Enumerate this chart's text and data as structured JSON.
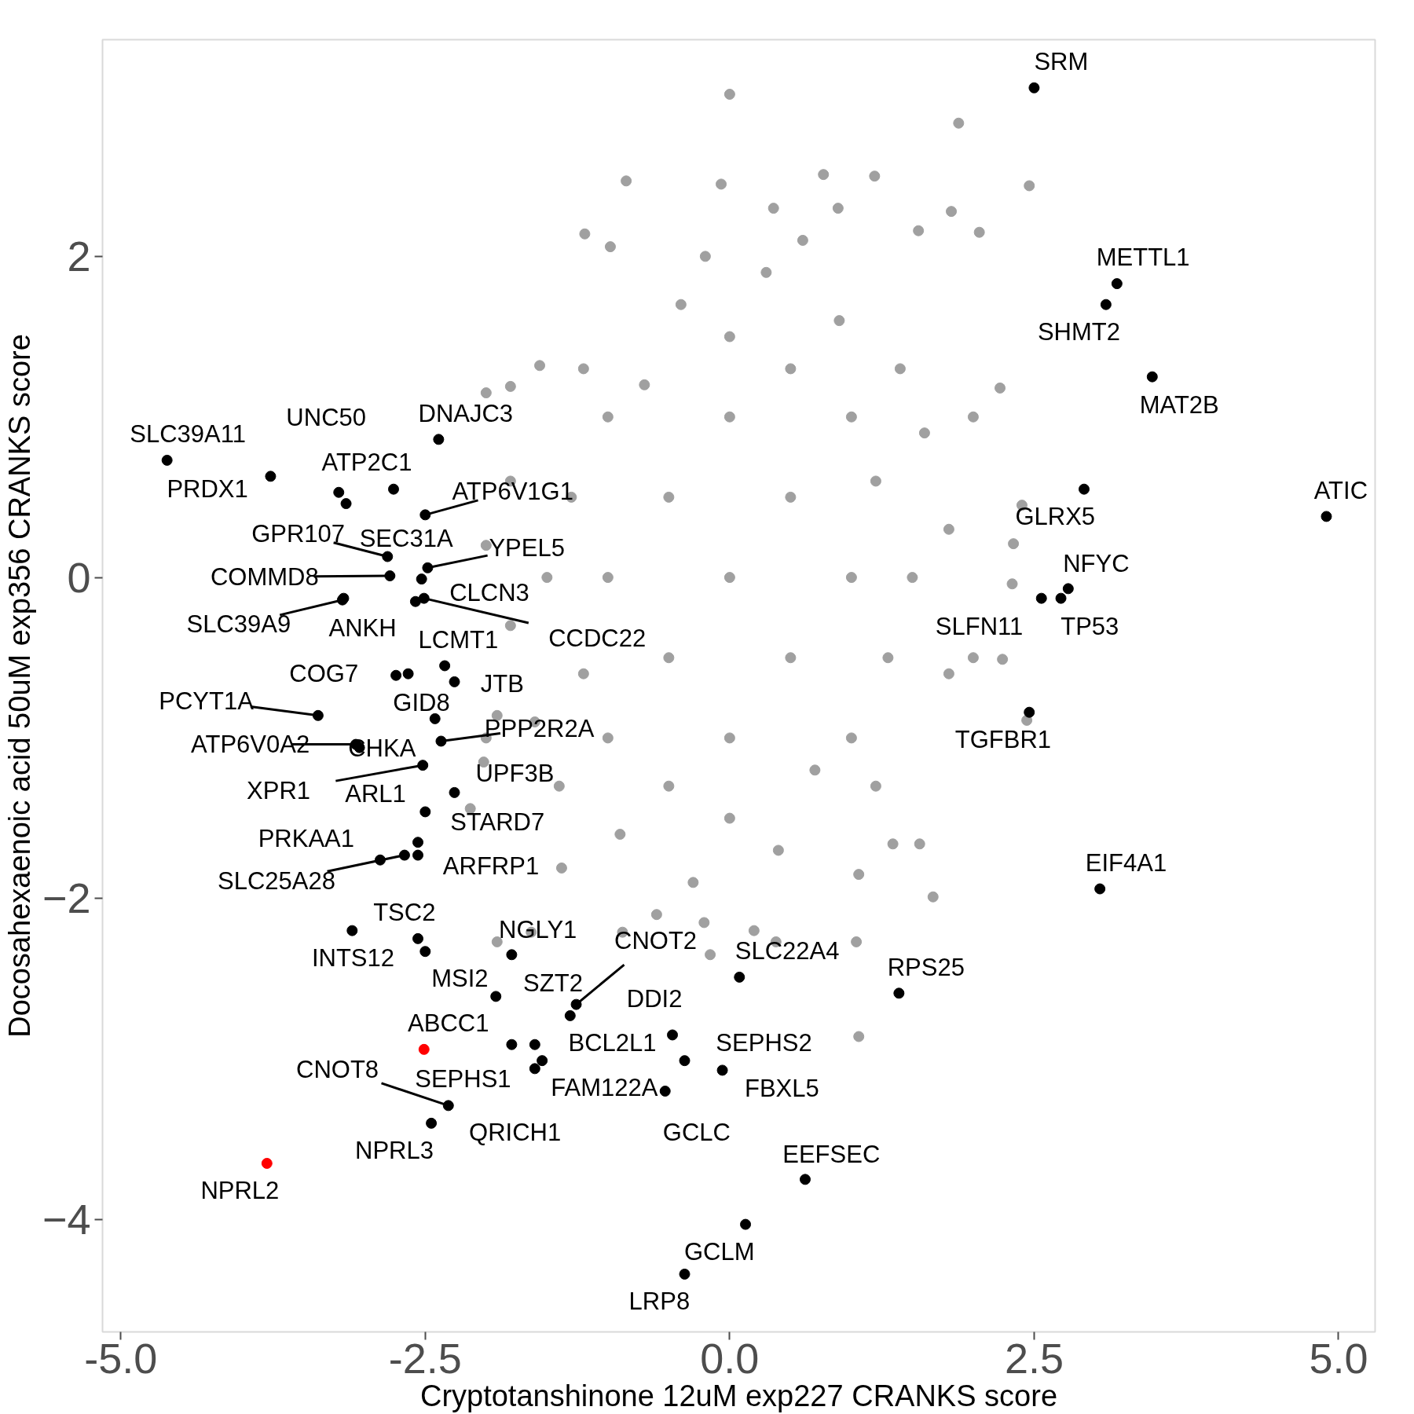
{
  "chart_data": {
    "type": "scatter",
    "xlabel": "Cryptotanshinone 12uM exp227 CRANKS score",
    "ylabel": "Docosahexaenoic acid 50uM exp356 CRANKS score",
    "xlim": [
      -5.15,
      5.3
    ],
    "ylim": [
      -4.7,
      3.35
    ],
    "xticks": [
      {
        "value": -5,
        "label": "-5.0"
      },
      {
        "value": -2.5,
        "label": "-2.5"
      },
      {
        "value": 0,
        "label": "0.0"
      },
      {
        "value": 2.5,
        "label": "2.5"
      },
      {
        "value": 5,
        "label": "5.0"
      }
    ],
    "yticks": [
      -4,
      -2,
      0,
      2
    ],
    "grid": false,
    "marker": "circle",
    "series": [
      {
        "color": "#a0a0a0",
        "x": [
          0,
          0.5,
          -0.5,
          0.5,
          -0.5,
          1,
          -1,
          0,
          0,
          1,
          -1,
          1,
          -1,
          0,
          0,
          1.5,
          -1.5,
          0.5,
          -0.5,
          0.7,
          -0.7,
          1.2,
          -1.2,
          1.3,
          -1.3,
          0.3,
          -0.3,
          0.9,
          -0.9,
          1.6,
          -1.6,
          1.8,
          -1.8,
          1.8,
          -1.8,
          0.4,
          -0.4,
          1.4,
          -1.4,
          1.2,
          -1.2,
          2,
          -2,
          2,
          -2,
          0.6,
          -0.2,
          0.2,
          -0.6,
          0.0,
          1.88,
          2.46,
          -0.85,
          -0.07,
          0.77,
          1.19,
          2.05,
          -1.19,
          -0.98,
          0.36,
          0.89,
          1.82,
          1.55,
          2.22,
          2.4,
          2.33,
          2.32,
          2.24,
          2.44,
          1.67,
          1.06,
          1.34,
          1.06,
          1.56,
          -1.91,
          -2.13,
          -2.02,
          -1.91,
          -2.0,
          -1.8,
          -1.56,
          -1.63,
          -1.38,
          -0.88,
          -0.16,
          0.38,
          -0.21,
          1.04
        ],
        "values": [
          0,
          0.5,
          -0.5,
          -0.5,
          0.5,
          0,
          0,
          1,
          -1,
          1,
          -1,
          -1,
          1,
          1.5,
          -1.5,
          0,
          0,
          1.3,
          -1.3,
          -1.2,
          1.2,
          0.6,
          -0.6,
          -0.5,
          0.5,
          1.9,
          -1.9,
          1.6,
          -1.6,
          0.9,
          -0.9,
          0.3,
          -0.3,
          -0.6,
          0.6,
          -1.7,
          1.7,
          1.3,
          -1.3,
          -1.3,
          1.3,
          1,
          -1,
          -0.5,
          0.2,
          2.1,
          2.0,
          -2.2,
          -2.1,
          3.01,
          2.83,
          2.44,
          2.47,
          2.45,
          2.51,
          2.5,
          2.15,
          2.14,
          2.06,
          2.3,
          2.3,
          2.28,
          2.16,
          1.18,
          0.45,
          0.21,
          -0.04,
          -0.51,
          -0.89,
          -1.99,
          -2.86,
          -1.66,
          -1.85,
          -1.66,
          -2.27,
          -1.44,
          -1.15,
          -0.86,
          1.15,
          1.19,
          1.32,
          -2.21,
          -1.81,
          -2.21,
          -2.35,
          -2.27,
          -2.15,
          -2.27
        ]
      },
      {
        "color": "#000000",
        "x": [
          2.5,
          3.18,
          3.09,
          3.47,
          4.9,
          2.91,
          2.78,
          2.72,
          2.56,
          2.46,
          3.04,
          1.39,
          0.08,
          0.62,
          0.13,
          -0.37,
          -0.37,
          -0.06,
          -0.47,
          -0.53,
          -1.26,
          -1.31,
          -1.6,
          -1.54,
          -1.6,
          -1.79,
          -2.31,
          -2.45,
          -1.92,
          -1.79,
          -2.56,
          -3.1,
          -2.87,
          -2.67,
          -2.56,
          -2.56,
          -2.5,
          -2.26,
          -2.52,
          -3.07,
          -3.04,
          -2.37,
          -2.42,
          -2.26,
          -2.34,
          -2.74,
          -3.38,
          -2.51,
          -2.58,
          -3.17,
          -3.18,
          -2.79,
          -2.81,
          -2.53,
          -2.48,
          -2.5,
          -2.39,
          -3.15,
          -3.21,
          -3.77,
          -4.62,
          -2.76,
          -2.64,
          -2.5
        ],
        "values": [
          3.05,
          1.83,
          1.7,
          1.25,
          0.38,
          0.55,
          -0.07,
          -0.13,
          -0.13,
          -0.84,
          -1.94,
          -2.59,
          -2.49,
          -3.75,
          -4.03,
          -4.34,
          -3.01,
          -3.07,
          -2.85,
          -3.2,
          -2.66,
          -2.73,
          -2.91,
          -3.01,
          -3.06,
          -2.91,
          -3.29,
          -3.4,
          -2.61,
          -2.35,
          -2.25,
          -2.2,
          -1.76,
          -1.73,
          -1.73,
          -1.65,
          -1.46,
          -1.34,
          -1.17,
          -1.04,
          -1.06,
          -1.02,
          -0.88,
          -0.65,
          -0.55,
          -0.61,
          -0.86,
          -0.13,
          -0.15,
          -0.13,
          -0.14,
          0.01,
          0.13,
          -0.01,
          0.06,
          0.39,
          0.86,
          0.46,
          0.53,
          0.63,
          0.73,
          0.55,
          -0.6,
          -2.33
        ]
      },
      {
        "color": "#ff0000",
        "x": [
          -2.51,
          -3.8
        ],
        "values": [
          -2.94,
          -3.65
        ]
      }
    ],
    "annotations": [
      {
        "text": "SRM",
        "x": 2.5,
        "y": 3.05
      },
      {
        "text": "METTL1",
        "x": 3.18,
        "y": 1.83
      },
      {
        "text": "SHMT2",
        "x": 3.09,
        "y": 1.7
      },
      {
        "text": "MAT2B",
        "x": 3.47,
        "y": 1.25
      },
      {
        "text": "ATIC",
        "x": 4.9,
        "y": 0.38
      },
      {
        "text": "GLRX5",
        "x": 2.91,
        "y": 0.55
      },
      {
        "text": "NFYC",
        "x": 2.78,
        "y": -0.07
      },
      {
        "text": "TP53",
        "x": 2.72,
        "y": -0.13
      },
      {
        "text": "SLFN11",
        "x": 2.56,
        "y": -0.13
      },
      {
        "text": "TGFBR1",
        "x": 2.46,
        "y": -0.84
      },
      {
        "text": "EIF4A1",
        "x": 3.04,
        "y": -1.94
      },
      {
        "text": "RPS25",
        "x": 1.39,
        "y": -2.59
      },
      {
        "text": "SLC22A4",
        "x": 0.08,
        "y": -2.49
      },
      {
        "text": "EEFSEC",
        "x": 0.62,
        "y": -3.75
      },
      {
        "text": "GCLM",
        "x": 0.13,
        "y": -4.03
      },
      {
        "text": "LRP8",
        "x": -0.37,
        "y": -4.34
      },
      {
        "text": "SEPHS2",
        "x": -0.37,
        "y": -3.01
      },
      {
        "text": "FBXL5",
        "x": -0.06,
        "y": -3.07
      },
      {
        "text": "DDI2",
        "x": -0.47,
        "y": -2.85
      },
      {
        "text": "GCLC",
        "x": -0.53,
        "y": -3.2
      },
      {
        "text": "CNOT2",
        "x": -1.26,
        "y": -2.66
      },
      {
        "text": "SZT2",
        "x": -1.31,
        "y": -2.73
      },
      {
        "text": "BCL2L1",
        "x": -1.6,
        "y": -2.91
      },
      {
        "text": "FAM122A",
        "x": -1.54,
        "y": -3.01
      },
      {
        "text": "QRICH1",
        "x": -1.6,
        "y": -3.06
      },
      {
        "text": "SEPHS1",
        "x": -1.79,
        "y": -2.91
      },
      {
        "text": "ABCC1",
        "x": -2.51,
        "y": -2.94
      },
      {
        "text": "CNOT8",
        "x": -2.31,
        "y": -3.29
      },
      {
        "text": "NPRL3",
        "x": -2.45,
        "y": -3.4
      },
      {
        "text": "NPRL2",
        "x": -3.8,
        "y": -3.65
      },
      {
        "text": "MSI2",
        "x": -1.92,
        "y": -2.61
      },
      {
        "text": "NGLY1",
        "x": -1.79,
        "y": -2.35
      },
      {
        "text": "TSC2",
        "x": -2.56,
        "y": -2.25
      },
      {
        "text": "INTS12",
        "x": -3.1,
        "y": -2.2
      },
      {
        "text": "PRKAA1",
        "x": -2.87,
        "y": -1.76
      },
      {
        "text": "SLC25A28",
        "x": -2.67,
        "y": -1.73
      },
      {
        "text": "ARFRP1",
        "x": -2.56,
        "y": -1.73
      },
      {
        "text": "ARL1",
        "x": -2.56,
        "y": -1.65
      },
      {
        "text": "STARD7",
        "x": -2.5,
        "y": -1.46
      },
      {
        "text": "UPF3B",
        "x": -2.26,
        "y": -1.34
      },
      {
        "text": "XPR1",
        "x": -2.52,
        "y": -1.17
      },
      {
        "text": "ATP6V0A2",
        "x": -3.07,
        "y": -1.04
      },
      {
        "text": "CHKA",
        "x": -3.04,
        "y": -1.06
      },
      {
        "text": "PPP2R2A",
        "x": -2.37,
        "y": -1.02
      },
      {
        "text": "GID8",
        "x": -2.42,
        "y": -0.88
      },
      {
        "text": "JTB",
        "x": -2.26,
        "y": -0.65
      },
      {
        "text": "LCMT1",
        "x": -2.34,
        "y": -0.55
      },
      {
        "text": "COG7",
        "x": -2.74,
        "y": -0.61
      },
      {
        "text": "PCYT1A",
        "x": -3.38,
        "y": -0.86
      },
      {
        "text": "CCDC22",
        "x": -2.51,
        "y": -0.13
      },
      {
        "text": "CLCN3",
        "x": -2.58,
        "y": -0.15
      },
      {
        "text": "ANKH",
        "x": -3.17,
        "y": -0.13
      },
      {
        "text": "SLC39A9",
        "x": -3.18,
        "y": -0.14
      },
      {
        "text": "COMMD8",
        "x": -2.79,
        "y": 0.01
      },
      {
        "text": "GPR107",
        "x": -2.81,
        "y": 0.13
      },
      {
        "text": "SEC31A",
        "x": -2.53,
        "y": -0.01
      },
      {
        "text": "YPEL5",
        "x": -2.48,
        "y": 0.06
      },
      {
        "text": "ATP6V1G1",
        "x": -2.5,
        "y": 0.39
      },
      {
        "text": "DNAJC3",
        "x": -2.39,
        "y": 0.86
      },
      {
        "text": "ATP2C1",
        "x": -3.15,
        "y": 0.46
      },
      {
        "text": "UNC50",
        "x": -3.21,
        "y": 0.53
      },
      {
        "text": "PRDX1",
        "x": -3.77,
        "y": 0.63
      },
      {
        "text": "SLC39A11",
        "x": -4.62,
        "y": 0.73
      }
    ]
  }
}
